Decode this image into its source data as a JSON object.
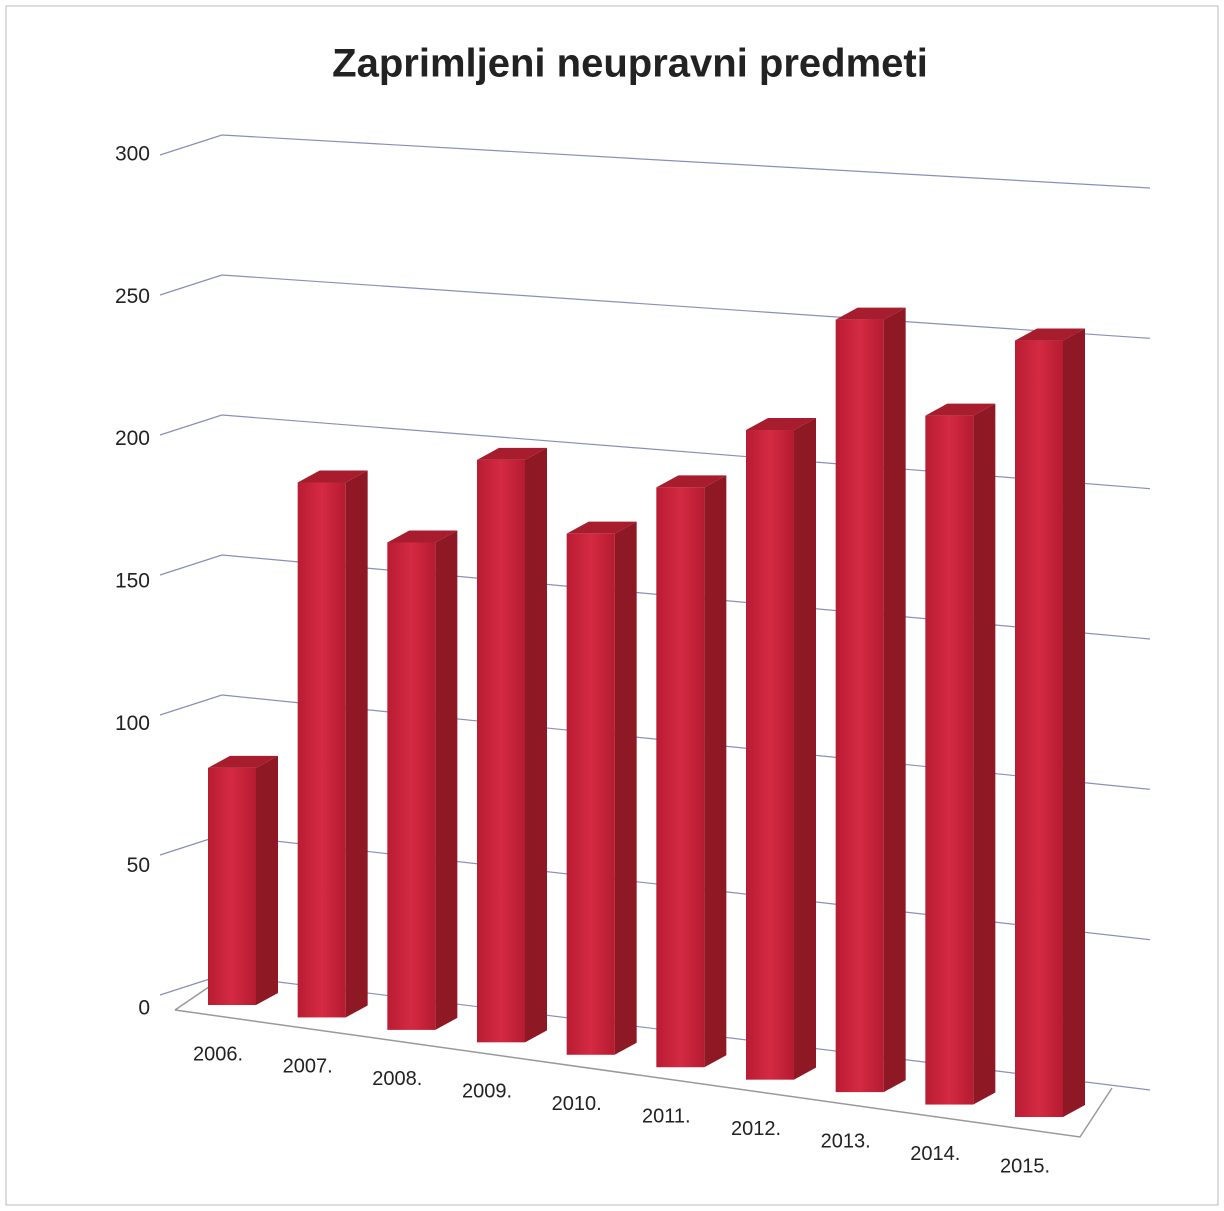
{
  "chart_data": {
    "type": "bar3d",
    "title": "Zaprimljeni neupravni predmeti",
    "categories": [
      "2006.",
      "2007.",
      "2008.",
      "2009.",
      "2010.",
      "2011.",
      "2012.",
      "2013.",
      "2014.",
      "2015."
    ],
    "values": [
      85,
      188,
      168,
      197,
      173,
      189,
      208,
      243,
      213,
      236
    ],
    "color": "#c8213a",
    "ylim": [
      0,
      300
    ],
    "yticks": [
      0,
      50,
      100,
      150,
      200,
      250,
      300
    ],
    "grid": true
  }
}
